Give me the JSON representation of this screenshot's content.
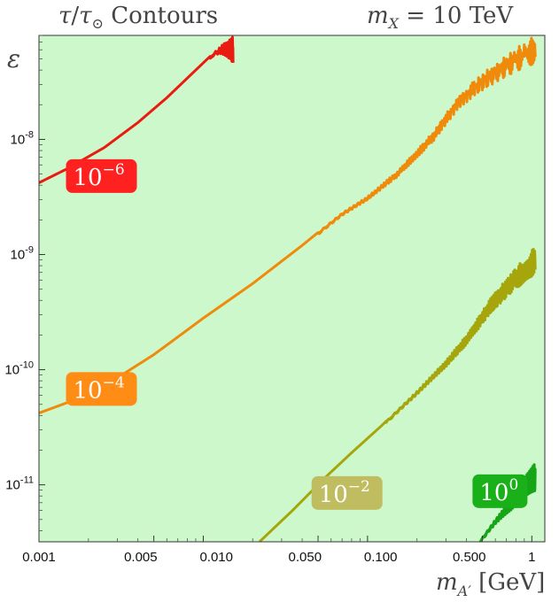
{
  "chart_data": {
    "type": "line",
    "title": "τ/τ⊙ Contours",
    "subtitle": "m_X = 10 TeV",
    "xlabel": "m_A′ [GeV]",
    "ylabel": "ε",
    "x_scale": "log",
    "y_scale": "log",
    "xlim": [
      0.001,
      1.2
    ],
    "ylim": [
      3.2e-12,
      8e-08
    ],
    "x_ticks": [
      {
        "value": 0.001,
        "label": "0.001"
      },
      {
        "value": 0.005,
        "label": "0.005"
      },
      {
        "value": 0.01,
        "label": "0.010"
      },
      {
        "value": 0.05,
        "label": "0.050"
      },
      {
        "value": 0.1,
        "label": "0.100"
      },
      {
        "value": 0.5,
        "label": "0.500"
      },
      {
        "value": 1,
        "label": "1"
      }
    ],
    "y_ticks": [
      {
        "value": 1e-08,
        "base": "10",
        "exp": "-8"
      },
      {
        "value": 1e-09,
        "base": "10",
        "exp": "-9"
      },
      {
        "value": 1e-10,
        "base": "10",
        "exp": "-10"
      },
      {
        "value": 1e-11,
        "base": "10",
        "exp": "-11"
      }
    ],
    "background_color": "#ccf8cc",
    "series": [
      {
        "label_base": "10",
        "label_exp": "−6",
        "color": "#ea1b10",
        "smooth": [
          [
            0.001,
            4.2e-09
          ],
          [
            0.0015,
            5.6e-09
          ],
          [
            0.0025,
            8.5e-09
          ],
          [
            0.004,
            1.4e-08
          ],
          [
            0.006,
            2.3e-08
          ],
          [
            0.009,
            4e-08
          ],
          [
            0.013,
            6.6e-08
          ],
          [
            0.0152,
            8e-08
          ]
        ],
        "oscillation_start": 0.011,
        "label_at": [
          0.0024,
          4.8e-09
        ],
        "label_bg": "#ff2020"
      },
      {
        "label_base": "10",
        "label_exp": "−4",
        "color": "#f08a0a",
        "smooth": [
          [
            0.001,
            4.2e-11
          ],
          [
            0.0015,
            5.2e-11
          ],
          [
            0.0025,
            7.2e-11
          ],
          [
            0.005,
            1.35e-10
          ],
          [
            0.01,
            2.8e-10
          ],
          [
            0.02,
            5.6e-10
          ],
          [
            0.04,
            1.2e-09
          ],
          [
            0.07,
            2.3e-09
          ],
          [
            0.1,
            3.2e-09
          ],
          [
            0.15,
            5.2e-09
          ],
          [
            0.25,
            1.15e-08
          ],
          [
            0.35,
            2.3e-08
          ],
          [
            0.45,
            3.3e-08
          ],
          [
            0.6,
            4.6e-08
          ],
          [
            0.8,
            6.2e-08
          ],
          [
            1.05,
            8e-08
          ]
        ],
        "oscillation_start": 0.05,
        "label_at": [
          0.0024,
          6.8e-11
        ],
        "label_bg": "#ff8c14"
      },
      {
        "label_base": "10",
        "label_exp": "−2",
        "color": "#a6a60c",
        "smooth": [
          [
            0.022,
            3.2e-12
          ],
          [
            0.035,
            6e-12
          ],
          [
            0.055,
            1.15e-11
          ],
          [
            0.08,
            1.9e-11
          ],
          [
            0.12,
            3.2e-11
          ],
          [
            0.2,
            6.5e-11
          ],
          [
            0.3,
            1.2e-10
          ],
          [
            0.4,
            2e-10
          ],
          [
            0.55,
            4e-10
          ],
          [
            0.75,
            7e-10
          ],
          [
            1.0,
            1.1e-09
          ],
          [
            1.05,
            1.25e-09
          ]
        ],
        "oscillation_start": 0.13,
        "label_at": [
          0.075,
          8.5e-12
        ],
        "label_bg": "#c0bd61"
      },
      {
        "label_base": "10",
        "label_exp": "0",
        "color": "#16a516",
        "smooth": [
          [
            0.48,
            3.2e-12
          ],
          [
            0.6,
            5e-12
          ],
          [
            0.75,
            7.5e-12
          ],
          [
            0.9,
            1.15e-11
          ],
          [
            1.05,
            1.55e-11
          ]
        ],
        "oscillation_start": 0.48,
        "label_at": [
          0.64,
          8.8e-12
        ],
        "label_bg": "#1ab01a"
      }
    ]
  }
}
